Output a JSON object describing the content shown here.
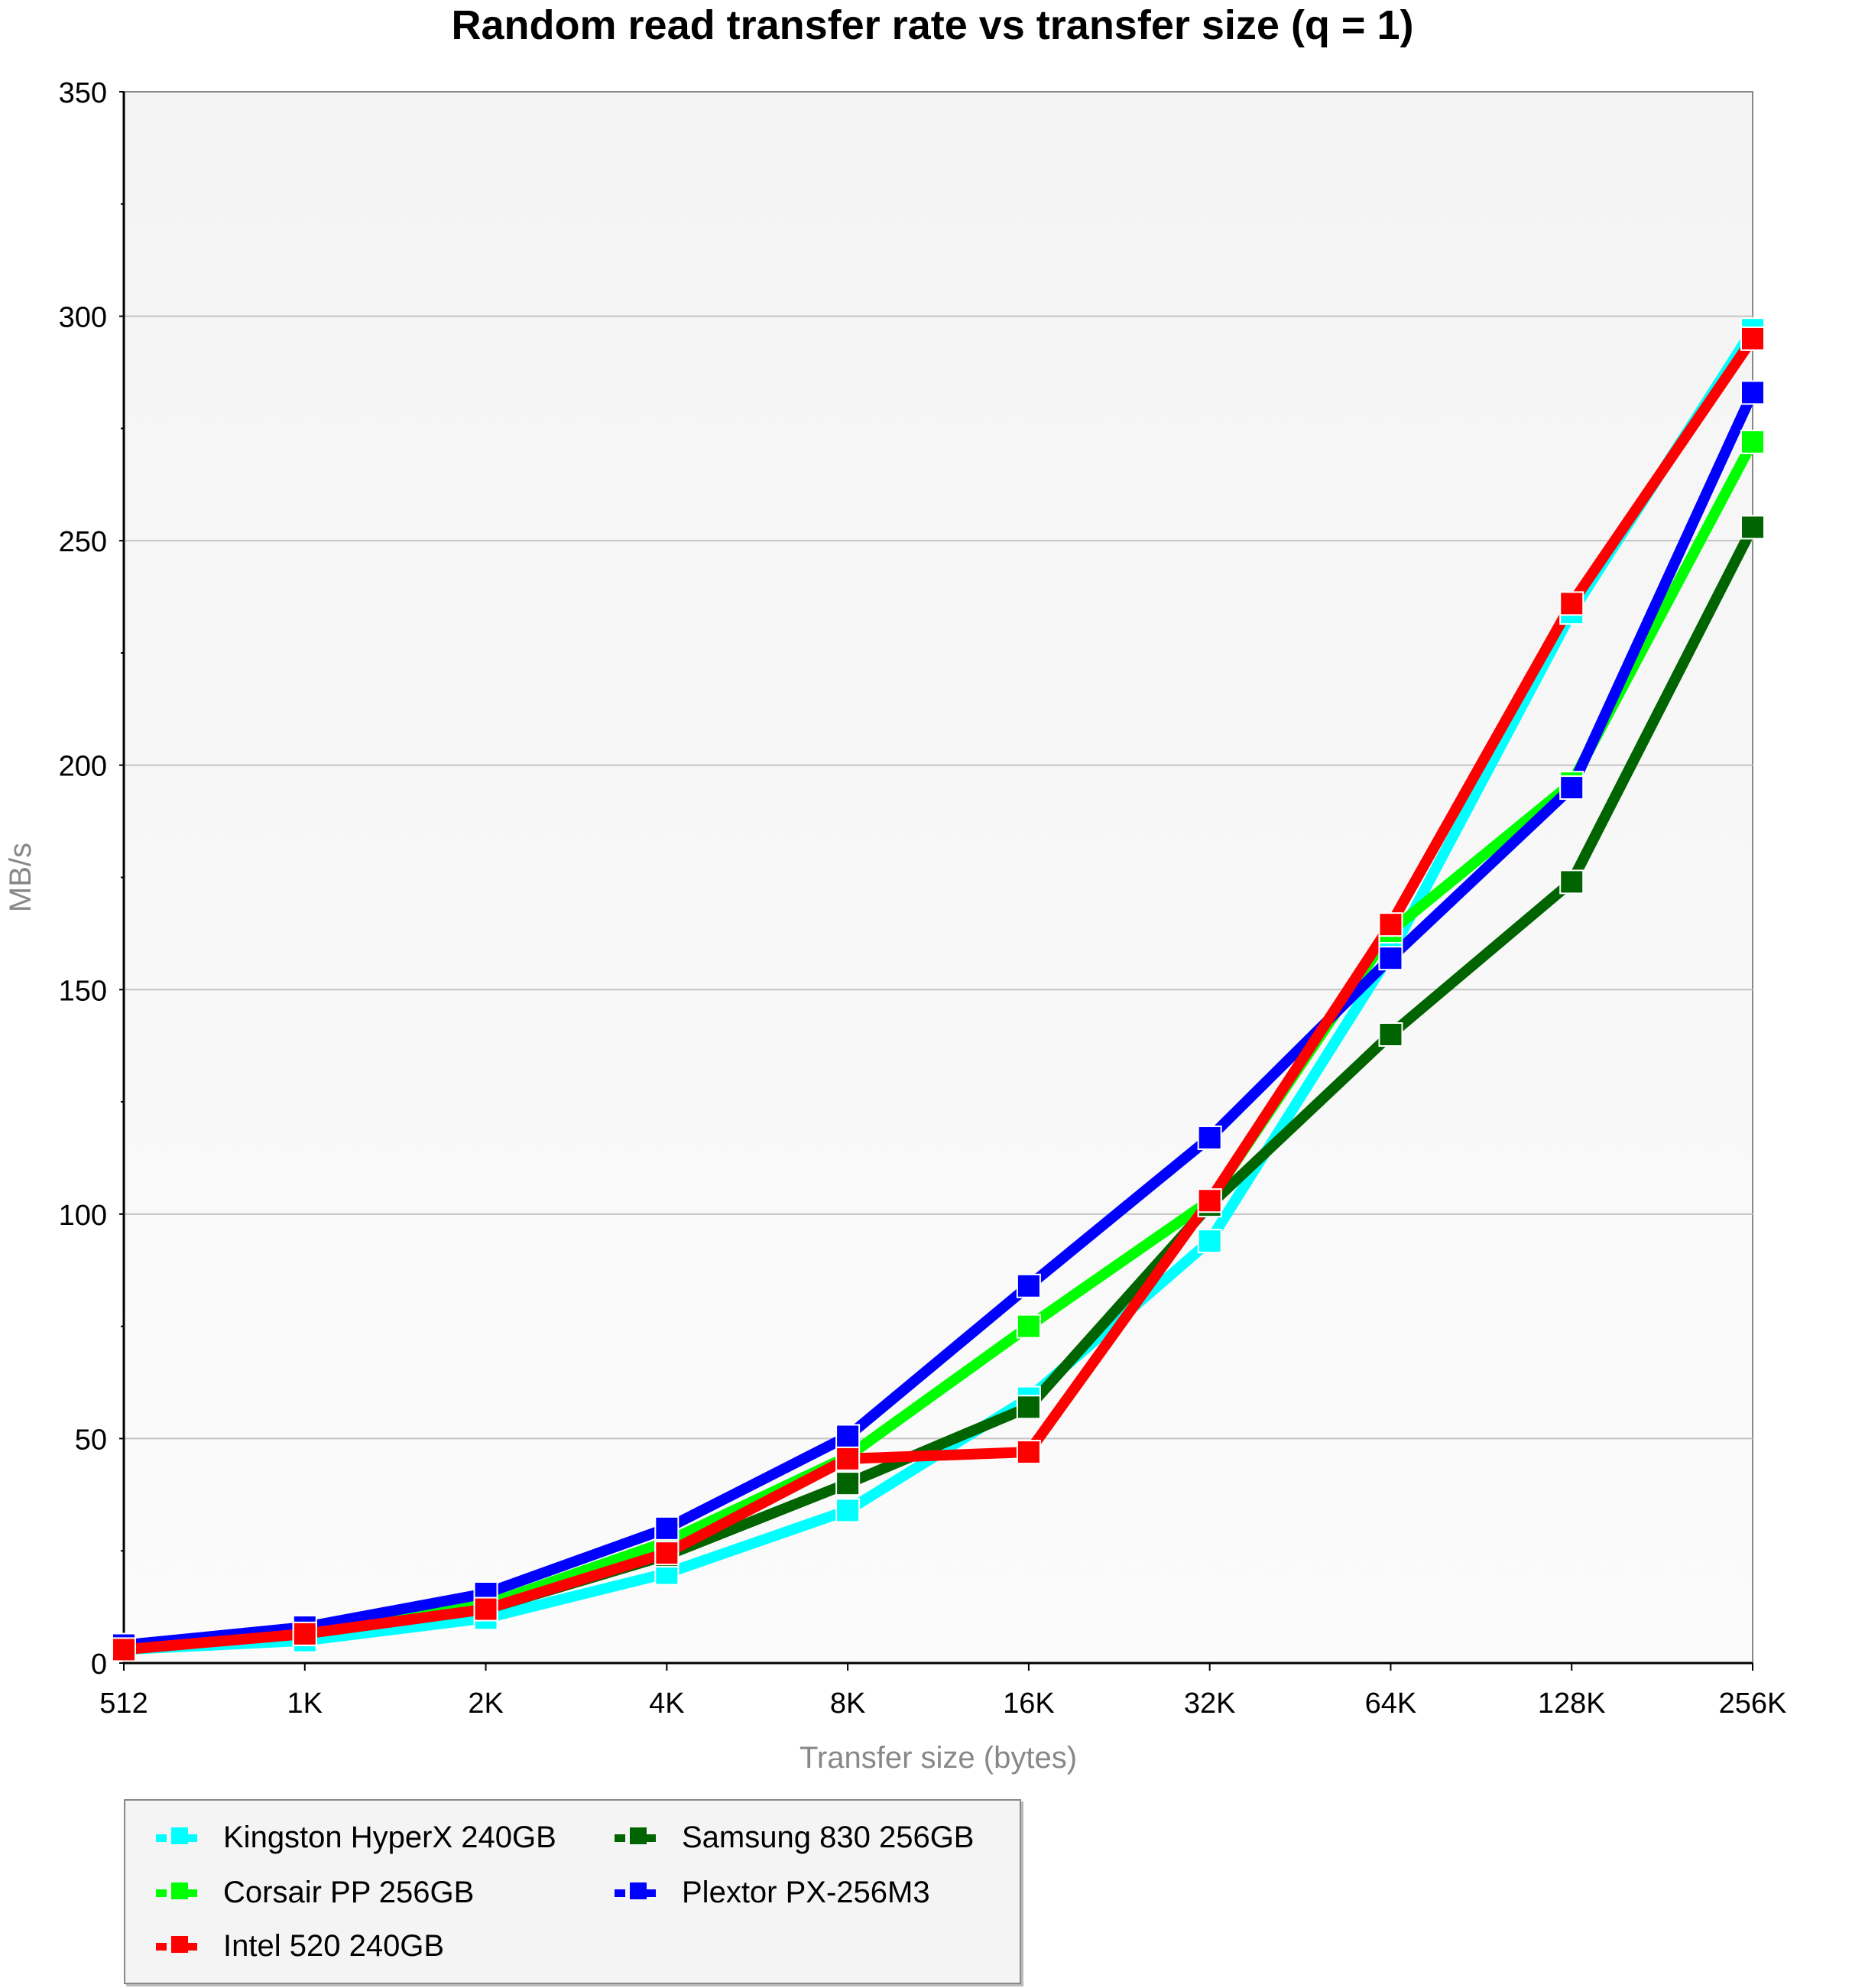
{
  "chart_data": {
    "type": "line",
    "title": "Random read transfer rate vs transfer size (q = 1)",
    "xlabel": "Transfer size (bytes)",
    "ylabel": "MB/s",
    "categories": [
      "512",
      "1K",
      "2K",
      "4K",
      "8K",
      "16K",
      "32K",
      "64K",
      "128K",
      "256K"
    ],
    "yticks": [
      "0",
      "50",
      "100",
      "150",
      "200",
      "250",
      "300",
      "350"
    ],
    "ylim": [
      0,
      350
    ],
    "grid": true,
    "legend_position": "bottom-left",
    "series": [
      {
        "name": "Kingston HyperX 240GB",
        "color": "#00ffff",
        "values": [
          3,
          5,
          10,
          20,
          34,
          59,
          94,
          158,
          234,
          297
        ]
      },
      {
        "name": "Corsair PP 256GB",
        "color": "#00ff00",
        "values": [
          3.5,
          6.5,
          13,
          27,
          46,
          75,
          103,
          163,
          196,
          272
        ]
      },
      {
        "name": "Samsung 830 256GB",
        "color": "#006400",
        "values": [
          3.5,
          6.5,
          12,
          24,
          40,
          57,
          102,
          140,
          174,
          253
        ]
      },
      {
        "name": "Plextor PX-256M3",
        "color": "#0000ff",
        "values": [
          4,
          8,
          15.5,
          30,
          50.5,
          84,
          117,
          157,
          195,
          283
        ]
      },
      {
        "name": "Intel 520 240GB",
        "color": "#ff0000",
        "values": [
          3,
          6.5,
          12,
          24.5,
          45.5,
          47,
          103,
          164.5,
          236,
          295
        ]
      }
    ],
    "legend_order": [
      0,
      2,
      1,
      3,
      4
    ]
  }
}
